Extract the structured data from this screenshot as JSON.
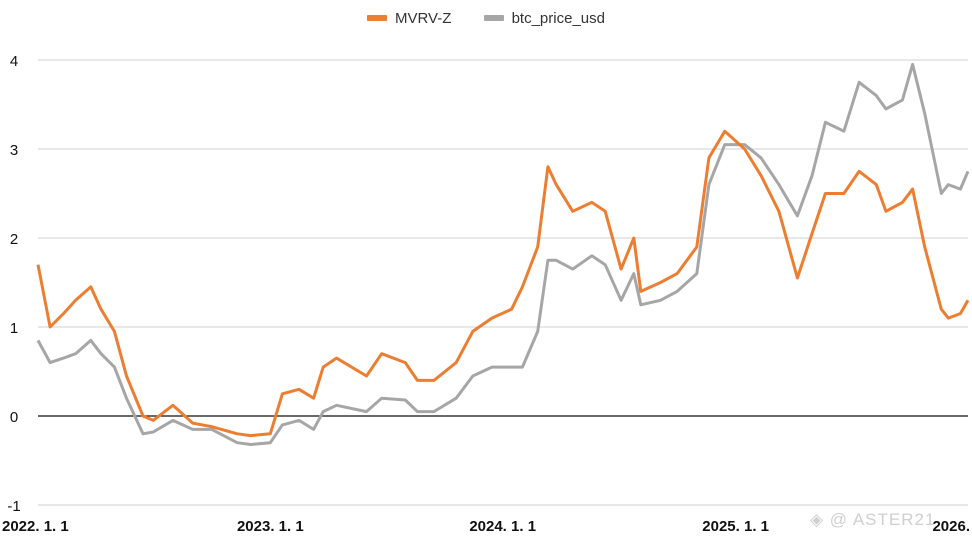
{
  "chart_data": {
    "type": "line",
    "xlim": [
      "2022-01-01",
      "2026-01-01"
    ],
    "ylim": [
      -1,
      4
    ],
    "yticks": [
      -1,
      0,
      1,
      2,
      3,
      4
    ],
    "xticks": [
      {
        "date": "2022-01-01",
        "label": "2022. 1. 1"
      },
      {
        "date": "2023-01-01",
        "label": "2023. 1. 1"
      },
      {
        "date": "2024-01-01",
        "label": "2024. 1. 1"
      },
      {
        "date": "2025-01-01",
        "label": "2025. 1. 1"
      },
      {
        "date": "2026-01-01",
        "label": "2026."
      }
    ],
    "grid": true,
    "legend_position": "top-center",
    "series": [
      {
        "name": "MVRV-Z",
        "color": "#ed7d31",
        "points": [
          [
            "2022-01-01",
            1.7
          ],
          [
            "2022-01-20",
            1.0
          ],
          [
            "2022-02-10",
            1.15
          ],
          [
            "2022-03-01",
            1.3
          ],
          [
            "2022-03-25",
            1.45
          ],
          [
            "2022-04-10",
            1.2
          ],
          [
            "2022-05-01",
            0.95
          ],
          [
            "2022-05-20",
            0.45
          ],
          [
            "2022-06-15",
            0.0
          ],
          [
            "2022-07-01",
            -0.05
          ],
          [
            "2022-08-01",
            0.12
          ],
          [
            "2022-09-01",
            -0.08
          ],
          [
            "2022-10-01",
            -0.12
          ],
          [
            "2022-11-10",
            -0.2
          ],
          [
            "2022-12-01",
            -0.22
          ],
          [
            "2023-01-01",
            -0.2
          ],
          [
            "2023-01-20",
            0.25
          ],
          [
            "2023-02-15",
            0.3
          ],
          [
            "2023-03-10",
            0.2
          ],
          [
            "2023-03-25",
            0.55
          ],
          [
            "2023-04-15",
            0.65
          ],
          [
            "2023-06-01",
            0.45
          ],
          [
            "2023-06-25",
            0.7
          ],
          [
            "2023-08-01",
            0.6
          ],
          [
            "2023-08-20",
            0.4
          ],
          [
            "2023-09-15",
            0.4
          ],
          [
            "2023-10-20",
            0.6
          ],
          [
            "2023-11-15",
            0.95
          ],
          [
            "2023-12-15",
            1.1
          ],
          [
            "2024-01-15",
            1.2
          ],
          [
            "2024-02-01",
            1.45
          ],
          [
            "2024-02-25",
            1.9
          ],
          [
            "2024-03-12",
            2.8
          ],
          [
            "2024-03-25",
            2.6
          ],
          [
            "2024-04-20",
            2.3
          ],
          [
            "2024-05-20",
            2.4
          ],
          [
            "2024-06-10",
            2.3
          ],
          [
            "2024-07-05",
            1.65
          ],
          [
            "2024-07-25",
            2.0
          ],
          [
            "2024-08-05",
            1.4
          ],
          [
            "2024-09-05",
            1.5
          ],
          [
            "2024-10-01",
            1.6
          ],
          [
            "2024-11-01",
            1.9
          ],
          [
            "2024-11-20",
            2.9
          ],
          [
            "2024-12-15",
            3.2
          ],
          [
            "2025-01-15",
            3.0
          ],
          [
            "2025-02-10",
            2.7
          ],
          [
            "2025-03-10",
            2.3
          ],
          [
            "2025-04-08",
            1.55
          ],
          [
            "2025-05-01",
            2.05
          ],
          [
            "2025-05-22",
            2.5
          ],
          [
            "2025-06-20",
            2.5
          ],
          [
            "2025-07-14",
            2.75
          ],
          [
            "2025-08-10",
            2.6
          ],
          [
            "2025-08-25",
            2.3
          ],
          [
            "2025-09-20",
            2.4
          ],
          [
            "2025-10-06",
            2.55
          ],
          [
            "2025-10-25",
            1.9
          ],
          [
            "2025-11-20",
            1.2
          ],
          [
            "2025-12-01",
            1.1
          ],
          [
            "2025-12-20",
            1.15
          ],
          [
            "2026-01-01",
            1.3
          ]
        ]
      },
      {
        "name": "btc_price_usd",
        "color": "#a6a6a6",
        "points": [
          [
            "2022-01-01",
            0.85
          ],
          [
            "2022-01-20",
            0.6
          ],
          [
            "2022-02-10",
            0.65
          ],
          [
            "2022-03-01",
            0.7
          ],
          [
            "2022-03-25",
            0.85
          ],
          [
            "2022-04-10",
            0.7
          ],
          [
            "2022-05-01",
            0.55
          ],
          [
            "2022-05-20",
            0.2
          ],
          [
            "2022-06-15",
            -0.2
          ],
          [
            "2022-07-01",
            -0.18
          ],
          [
            "2022-08-01",
            -0.05
          ],
          [
            "2022-09-01",
            -0.15
          ],
          [
            "2022-10-01",
            -0.15
          ],
          [
            "2022-11-10",
            -0.3
          ],
          [
            "2022-12-01",
            -0.32
          ],
          [
            "2023-01-01",
            -0.3
          ],
          [
            "2023-01-20",
            -0.1
          ],
          [
            "2023-02-15",
            -0.05
          ],
          [
            "2023-03-10",
            -0.15
          ],
          [
            "2023-03-25",
            0.05
          ],
          [
            "2023-04-15",
            0.12
          ],
          [
            "2023-06-01",
            0.05
          ],
          [
            "2023-06-25",
            0.2
          ],
          [
            "2023-08-01",
            0.18
          ],
          [
            "2023-08-20",
            0.05
          ],
          [
            "2023-09-15",
            0.05
          ],
          [
            "2023-10-20",
            0.2
          ],
          [
            "2023-11-15",
            0.45
          ],
          [
            "2023-12-15",
            0.55
          ],
          [
            "2024-01-15",
            0.55
          ],
          [
            "2024-02-01",
            0.55
          ],
          [
            "2024-02-25",
            0.95
          ],
          [
            "2024-03-12",
            1.75
          ],
          [
            "2024-03-25",
            1.75
          ],
          [
            "2024-04-20",
            1.65
          ],
          [
            "2024-05-20",
            1.8
          ],
          [
            "2024-06-10",
            1.7
          ],
          [
            "2024-07-05",
            1.3
          ],
          [
            "2024-07-25",
            1.6
          ],
          [
            "2024-08-05",
            1.25
          ],
          [
            "2024-09-05",
            1.3
          ],
          [
            "2024-10-01",
            1.4
          ],
          [
            "2024-11-01",
            1.6
          ],
          [
            "2024-11-20",
            2.6
          ],
          [
            "2024-12-15",
            3.05
          ],
          [
            "2025-01-15",
            3.05
          ],
          [
            "2025-02-10",
            2.9
          ],
          [
            "2025-03-10",
            2.6
          ],
          [
            "2025-04-08",
            2.25
          ],
          [
            "2025-05-01",
            2.7
          ],
          [
            "2025-05-22",
            3.3
          ],
          [
            "2025-06-20",
            3.2
          ],
          [
            "2025-07-14",
            3.75
          ],
          [
            "2025-08-10",
            3.6
          ],
          [
            "2025-08-25",
            3.45
          ],
          [
            "2025-09-20",
            3.55
          ],
          [
            "2025-10-06",
            3.95
          ],
          [
            "2025-10-25",
            3.4
          ],
          [
            "2025-11-20",
            2.5
          ],
          [
            "2025-12-01",
            2.6
          ],
          [
            "2025-12-20",
            2.55
          ],
          [
            "2026-01-01",
            2.75
          ]
        ]
      }
    ]
  },
  "watermark": "◈ @ ASTER21"
}
